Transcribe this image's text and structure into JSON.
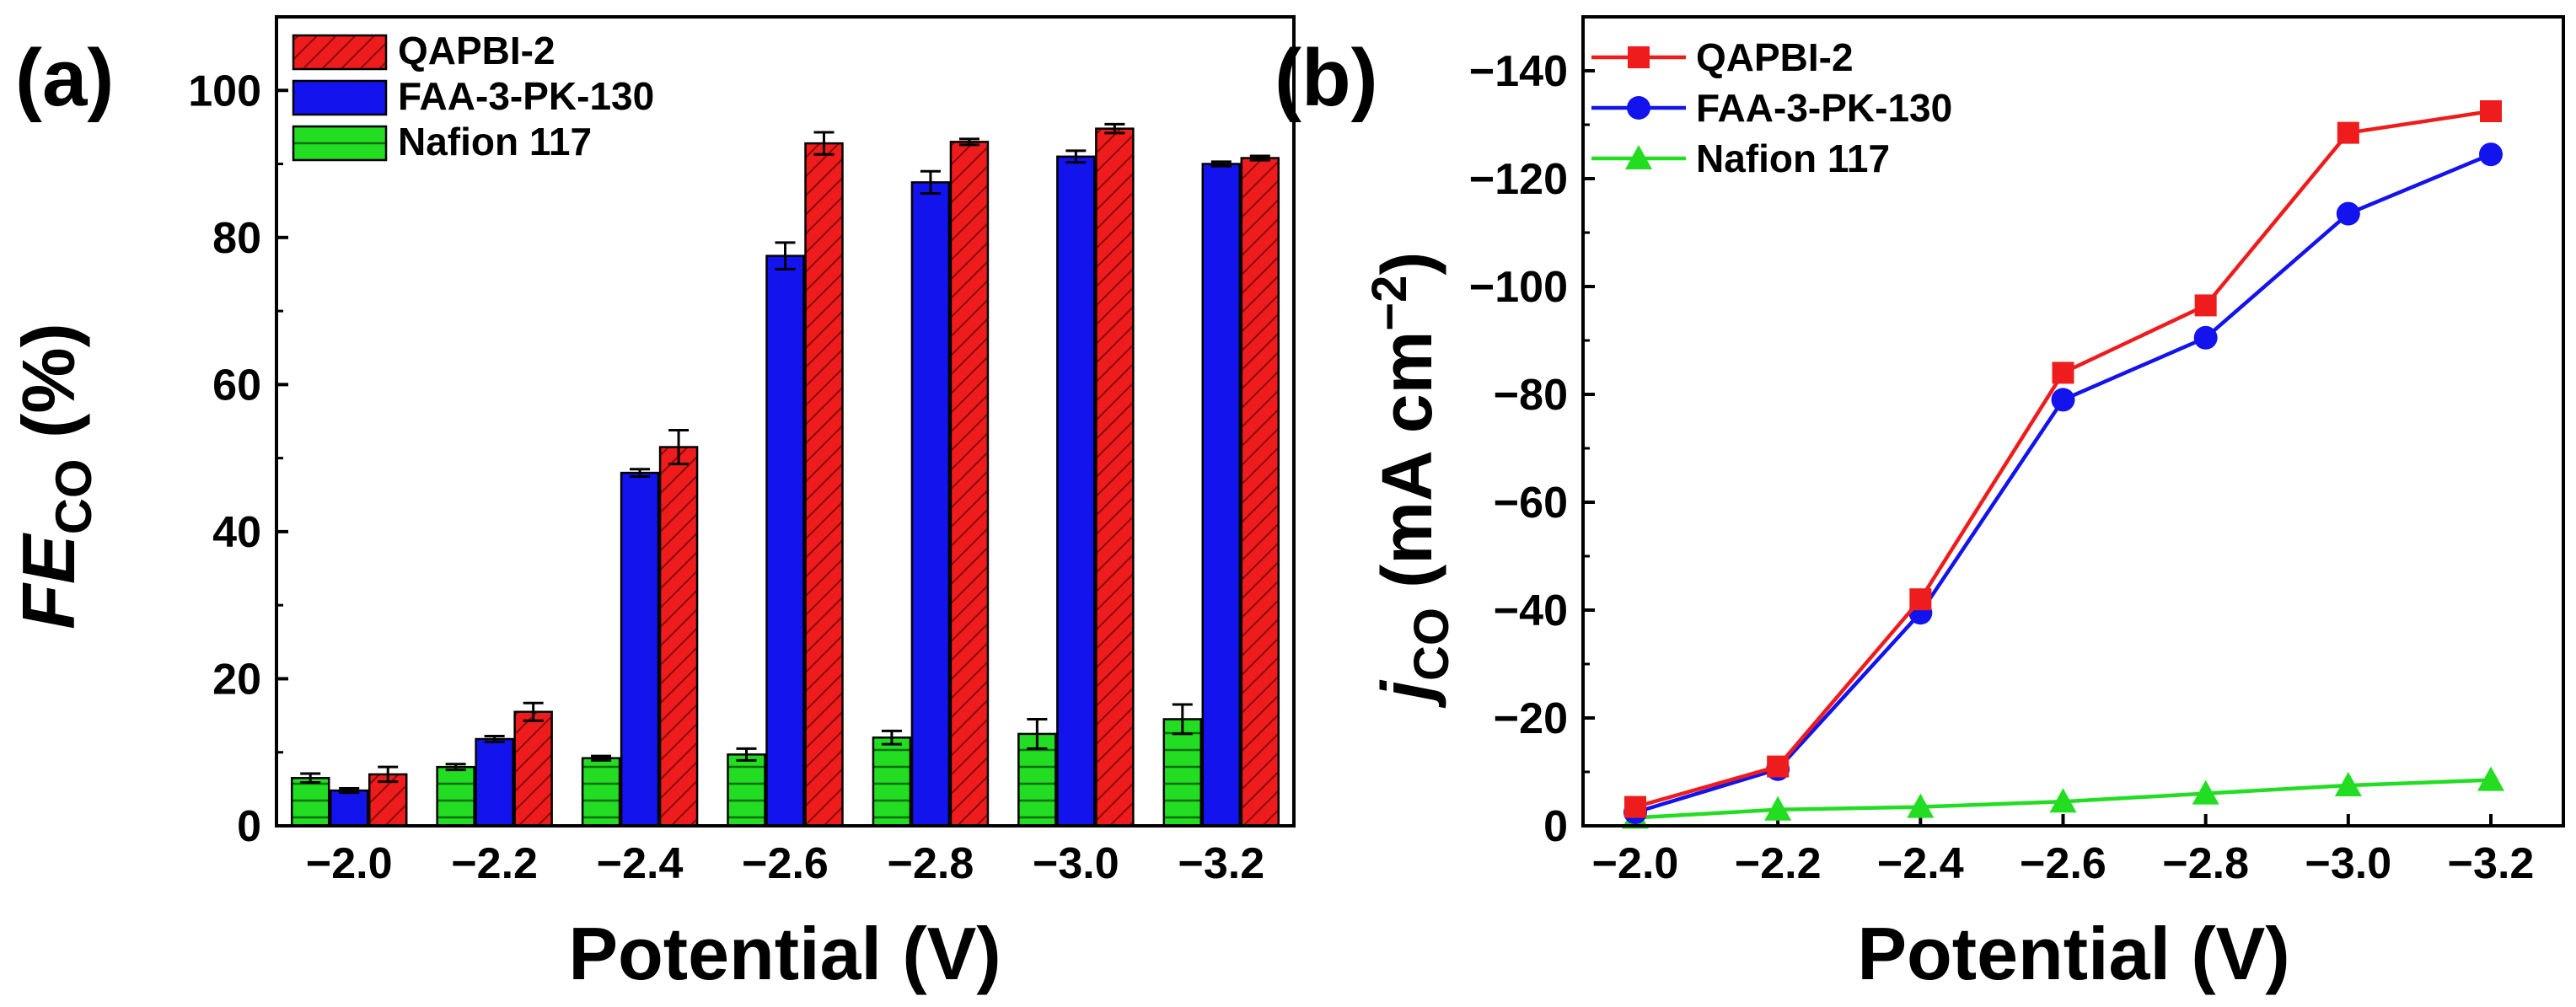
{
  "colors": {
    "qapbi": "#ee1c1c",
    "faa": "#1313ee",
    "nafion": "#22dd22",
    "axis": "#000000"
  },
  "chart_data": [
    {
      "panel_label": "(a)",
      "type": "bar",
      "title": "",
      "xlabel": "Potential (V)",
      "ylabel": {
        "main": "FE",
        "sub": "CO",
        "suffix": " (%)"
      },
      "categories": [
        "−2.0",
        "−2.2",
        "−2.4",
        "−2.6",
        "−2.8",
        "−3.0",
        "−3.2"
      ],
      "ylim": [
        0,
        110
      ],
      "yticks": [
        0,
        20,
        40,
        60,
        80,
        100
      ],
      "legend_position": "top-left",
      "series": [
        {
          "key": "nafion",
          "name": "Nafion 117",
          "pattern": "horizontal-lines",
          "values": [
            6.5,
            8.0,
            9.2,
            9.7,
            12.0,
            12.5,
            14.5
          ],
          "errors": [
            0.6,
            0.4,
            0.3,
            0.8,
            0.9,
            2.0,
            2.0
          ]
        },
        {
          "key": "faa",
          "name": "FAA-3-PK-130",
          "pattern": "solid",
          "values": [
            4.8,
            11.8,
            48.0,
            77.5,
            87.5,
            91.0,
            90.0
          ],
          "errors": [
            0.3,
            0.4,
            0.5,
            1.8,
            1.5,
            0.8,
            0.3
          ]
        },
        {
          "key": "qapbi",
          "name": "QAPBI-2",
          "pattern": "diagonal-lines",
          "values": [
            7.0,
            15.5,
            51.5,
            92.8,
            93.0,
            94.8,
            90.8
          ],
          "errors": [
            1.0,
            1.2,
            2.3,
            1.5,
            0.4,
            0.6,
            0.3
          ]
        }
      ]
    },
    {
      "panel_label": "(b)",
      "type": "line",
      "title": "",
      "xlabel": "Potential (V)",
      "ylabel": {
        "main": "j",
        "sub": "CO",
        "suffix": " (mA cm",
        "sup": "−2",
        "close": ")"
      },
      "x": [
        "−2.0",
        "−2.2",
        "−2.4",
        "−2.6",
        "−2.8",
        "−3.0",
        "−3.2"
      ],
      "ylim": [
        0,
        -150
      ],
      "yticks": [
        0,
        -20,
        -40,
        -60,
        -80,
        -100,
        -120,
        -140
      ],
      "ytick_labels": [
        "0",
        "−20",
        "−40",
        "−60",
        "−80",
        "−100",
        "−120",
        "−140"
      ],
      "legend_position": "top-left",
      "series": [
        {
          "key": "qapbi",
          "name": "QAPBI-2",
          "marker": "square",
          "values": [
            -3.5,
            -11.0,
            -42.0,
            -84.0,
            -96.5,
            -128.5,
            -132.5
          ]
        },
        {
          "key": "faa",
          "name": "FAA-3-PK-130",
          "marker": "circle",
          "values": [
            -2.5,
            -10.5,
            -39.5,
            -79.0,
            -90.5,
            -113.5,
            -124.5
          ]
        },
        {
          "key": "nafion",
          "name": "Nafion 117",
          "marker": "triangle",
          "values": [
            -1.5,
            -3.0,
            -3.5,
            -4.5,
            -6.0,
            -7.5,
            -8.5
          ]
        }
      ]
    }
  ]
}
